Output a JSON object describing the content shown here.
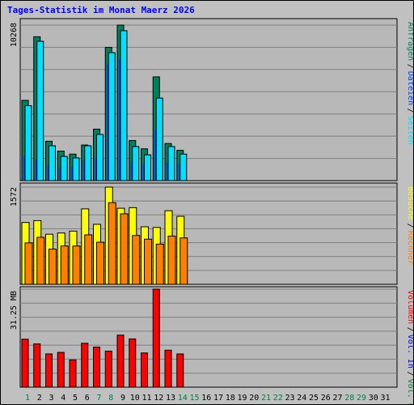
{
  "title": "Tages-Statistik im Monat Maerz 2026",
  "colors": {
    "frame_bg": "#c0c0c0",
    "plot_bg": "#b8b8b8",
    "grid": "#7f7f7f",
    "title": "#0000ff",
    "weekday_label": "#000000",
    "weekend_label": "#008040",
    "anfragen": "#00805c",
    "dateien": "#0040ff",
    "seiten": "#00e0ff",
    "besuche": "#ffff00",
    "rechner": "#ff8000",
    "vol_out": "#008040",
    "vol_in": "#0000ff",
    "volumen": "#ff0000"
  },
  "chart_data": {
    "type": "bar",
    "title": "Tages-Statistik im Monat Maerz 2026",
    "categories": [
      "1",
      "2",
      "3",
      "4",
      "5",
      "6",
      "7",
      "8",
      "9",
      "10",
      "11",
      "12",
      "13",
      "14",
      "15",
      "16",
      "17",
      "18",
      "19",
      "20",
      "21",
      "22",
      "23",
      "24",
      "25",
      "26",
      "27",
      "28",
      "29",
      "30",
      "31"
    ],
    "weekend_days": [
      "1",
      "7",
      "8",
      "14",
      "15",
      "21",
      "22",
      "28",
      "29"
    ],
    "panels": [
      {
        "id": "hits",
        "scale_label": "10268",
        "ymax": 10268,
        "legend": [
          {
            "text": "Anfragen",
            "color": "#00805c"
          },
          {
            "text": "/",
            "color": "#000000"
          },
          {
            "text": "Dateien",
            "color": "#0040ff"
          },
          {
            "text": "/",
            "color": "#000000"
          },
          {
            "text": "Seiten",
            "color": "#00e0ff"
          }
        ],
        "series": [
          {
            "name": "Anfragen",
            "color": "#00805c",
            "values": [
              5300,
              9500,
              2600,
              1950,
              1750,
              2350,
              3400,
              8800,
              10268,
              2650,
              2100,
              6850,
              2450,
              2000,
              null,
              null,
              null,
              null,
              null,
              null,
              null,
              null,
              null,
              null,
              null,
              null,
              null,
              null,
              null,
              null,
              null
            ]
          },
          {
            "name": "Dateien",
            "color": "#0040ff",
            "values": [
              1600,
              1400,
              1000,
              850,
              900,
              1350,
              1500,
              7700,
              8000,
              1300,
              1100,
              3400,
              1200,
              1100,
              null,
              null,
              null,
              null,
              null,
              null,
              null,
              null,
              null,
              null,
              null,
              null,
              null,
              null,
              null,
              null,
              null
            ]
          },
          {
            "name": "Seiten",
            "color": "#00e0ff",
            "values": [
              4950,
              9200,
              2300,
              1600,
              1500,
              2300,
              3050,
              8450,
              9900,
              2250,
              1700,
              5450,
              2250,
              1750,
              null,
              null,
              null,
              null,
              null,
              null,
              null,
              null,
              null,
              null,
              null,
              null,
              null,
              null,
              null,
              null,
              null
            ]
          }
        ]
      },
      {
        "id": "visits",
        "scale_label": "1572",
        "ymax": 1572,
        "legend": [
          {
            "text": "Besuche",
            "color": "#ffff00"
          },
          {
            "text": "/",
            "color": "#000000"
          },
          {
            "text": "Rechner",
            "color": "#ff8000"
          }
        ],
        "series": [
          {
            "name": "Besuche",
            "color": "#ffff00",
            "values": [
              1000,
              1030,
              810,
              830,
              860,
              1220,
              970,
              1572,
              1230,
              1240,
              930,
              920,
              1190,
              1100,
              null,
              null,
              null,
              null,
              null,
              null,
              null,
              null,
              null,
              null,
              null,
              null,
              null,
              null,
              null,
              null,
              null
            ]
          },
          {
            "name": "Rechner",
            "color": "#ff8000",
            "values": [
              670,
              760,
              570,
              620,
              620,
              800,
              680,
              1320,
              1140,
              790,
              730,
              650,
              780,
              750,
              null,
              null,
              null,
              null,
              null,
              null,
              null,
              null,
              null,
              null,
              null,
              null,
              null,
              null,
              null,
              null,
              null
            ]
          }
        ]
      },
      {
        "id": "volume",
        "scale_label": "31.25 MB",
        "ymax": 31.25,
        "legend": [
          {
            "text": "Volumen",
            "color": "#ff0000"
          },
          {
            "text": "/",
            "color": "#000000"
          },
          {
            "text": "Vol. In",
            "color": "#0000ff"
          },
          {
            "text": "/",
            "color": "#000000"
          },
          {
            "text": "Vol. Out",
            "color": "#008040"
          }
        ],
        "series": [
          {
            "name": "Volumen",
            "color": "#ff0000",
            "values": [
              15.3,
              13.8,
              10.6,
              11.1,
              8.7,
              14.0,
              12.8,
              11.5,
              16.6,
              15.4,
              10.9,
              31.25,
              11.8,
              10.6,
              null,
              null,
              null,
              null,
              null,
              null,
              null,
              null,
              null,
              null,
              null,
              null,
              null,
              null,
              null,
              null,
              null
            ]
          }
        ]
      }
    ]
  }
}
